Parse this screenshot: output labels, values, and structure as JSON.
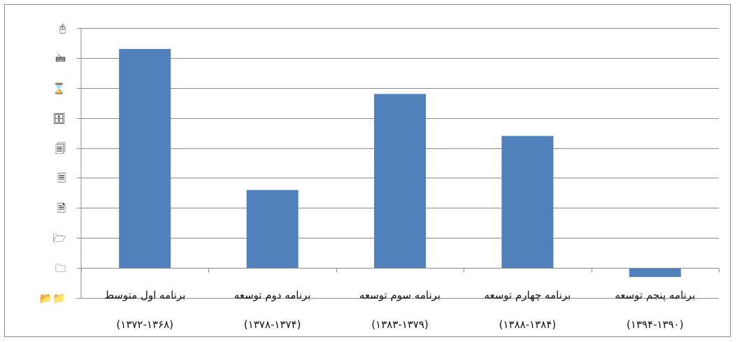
{
  "chart_data": {
    "type": "bar",
    "categories": [
      {
        "line1": "برنامه اول متوسط",
        "line2": "(۱۳۷۲-۱۳۶۸)"
      },
      {
        "line1": "برنامه دوم توسعه",
        "line2": "(۱۳۷۸-۱۳۷۴)"
      },
      {
        "line1": "برنامه سوم توسعه",
        "line2": "(۱۳۸۳-۱۳۷۹)"
      },
      {
        "line1": "برنامه چهارم توسعه",
        "line2": "(۱۳۸۸-۱۳۸۴)"
      },
      {
        "line1": "برنامه پنجم توسعه",
        "line2": "(۱۳۹۴-۱۳۹۰)"
      }
    ],
    "values": [
      7.3,
      2.6,
      5.8,
      4.4,
      -0.3
    ],
    "ylim": [
      -1,
      8
    ],
    "yticks": [
      {
        "value": -1,
        "glyph": "📂📁"
      },
      {
        "value": 0,
        "glyph": "🗀"
      },
      {
        "value": 1,
        "glyph": "🗁"
      },
      {
        "value": 2,
        "glyph": "🗎"
      },
      {
        "value": 3,
        "glyph": "🗏"
      },
      {
        "value": 4,
        "glyph": "🗐"
      },
      {
        "value": 5,
        "glyph": "🗄"
      },
      {
        "value": 6,
        "glyph": "⌛"
      },
      {
        "value": 7,
        "glyph": "🖮"
      },
      {
        "value": 8,
        "glyph": "🖰"
      }
    ],
    "grid": true,
    "colors": {
      "bar": "#4f81bd",
      "grid": "#8c8c8c",
      "axis": "#8c8c8c"
    }
  }
}
